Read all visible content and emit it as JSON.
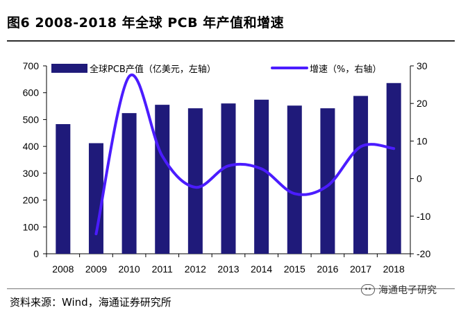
{
  "header": {
    "title": "图6  2008-2018 年全球 PCB 年产值和增速"
  },
  "footer": {
    "source": "资料来源：Wind，海通证券研究所",
    "watermark": "海通电子研究"
  },
  "colors": {
    "bar": "#1f1a7a",
    "line": "#4b1cff",
    "axis": "#000000"
  },
  "chart_data": {
    "type": "bar",
    "categories": [
      "2008",
      "2009",
      "2010",
      "2011",
      "2012",
      "2013",
      "2014",
      "2015",
      "2016",
      "2017",
      "2018"
    ],
    "series": [
      {
        "name": "全球PCB产值（亿美元，左轴）",
        "type": "bar",
        "axis": "left",
        "values": [
          483,
          412,
          524,
          555,
          542,
          560,
          574,
          552,
          542,
          588,
          636
        ]
      },
      {
        "name": "增速（%，右轴）",
        "type": "line",
        "axis": "right",
        "values": [
          null,
          -14.7,
          27.2,
          6.0,
          -2.3,
          3.4,
          2.6,
          -4.0,
          -1.9,
          8.5,
          8.0
        ]
      }
    ],
    "y_left": {
      "min": 0,
      "max": 700,
      "ticks": [
        0,
        100,
        200,
        300,
        400,
        500,
        600,
        700
      ]
    },
    "y_right": {
      "min": -20,
      "max": 30,
      "ticks": [
        -20,
        -10,
        0,
        10,
        20,
        30
      ]
    },
    "legend": "top",
    "grid": false
  }
}
